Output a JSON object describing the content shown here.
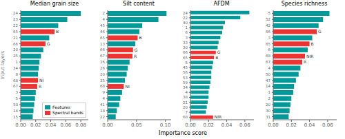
{
  "xlabel": "Importance score",
  "chart_data": [
    {
      "type": "bar",
      "orientation": "horizontal",
      "stacked": true,
      "title": "Median grain size",
      "ylabel": "Input layers",
      "legend": "lower right",
      "categories": [
        "24",
        "23",
        "22",
        "65",
        "21",
        "66",
        "20",
        "25",
        "1",
        "34",
        "8",
        "68",
        "67",
        "3",
        "5",
        "50",
        "14",
        "15"
      ],
      "series": [
        {
          "name": "Features",
          "color": "#009999",
          "values": [
            0.08,
            0.062,
            0.05,
            null,
            0.038,
            null,
            0.03,
            0.027,
            0.025,
            0.024,
            0.023,
            null,
            null,
            0.02,
            0.019,
            0.018,
            0.017,
            0.016
          ]
        },
        {
          "name": "Spectral bands",
          "color": "#EE3333",
          "values": [
            null,
            null,
            null,
            0.045,
            null,
            0.033,
            null,
            null,
            null,
            null,
            null,
            0.023,
            0.022,
            null,
            null,
            null,
            null,
            null
          ]
        }
      ],
      "annotations": [
        null,
        null,
        null,
        "B",
        null,
        "G",
        null,
        null,
        null,
        null,
        null,
        "NI",
        "R",
        null,
        null,
        null,
        null,
        null
      ],
      "xlim": [
        0,
        0.09
      ],
      "xticks": [
        {
          "value": 0,
          "label": "0.00"
        },
        0.02,
        0.04,
        0.06,
        0.08
      ]
    },
    {
      "type": "bar",
      "orientation": "horizontal",
      "stacked": true,
      "title": "Silt content",
      "categories": [
        "2",
        "4",
        "45",
        "46",
        "65",
        "13",
        "66",
        "67",
        "16",
        "26",
        "20",
        "35",
        "68",
        "9",
        "4",
        "41",
        "18",
        "22"
      ],
      "series": [
        {
          "name": "Features",
          "color": "#009999",
          "values": [
            0.102,
            0.088,
            0.06,
            0.055,
            null,
            0.048,
            null,
            null,
            0.038,
            0.035,
            0.033,
            0.03,
            null,
            0.025,
            0.022,
            0.02,
            0.016,
            0.014
          ]
        },
        {
          "name": "Spectral bands",
          "color": "#EE3333",
          "values": [
            null,
            null,
            null,
            null,
            0.052,
            null,
            0.044,
            0.043,
            null,
            null,
            null,
            null,
            0.028,
            null,
            null,
            null,
            null,
            null
          ]
        }
      ],
      "annotations": [
        null,
        null,
        null,
        null,
        "B",
        null,
        "G",
        "R",
        null,
        null,
        null,
        null,
        "NI",
        null,
        null,
        null,
        null,
        null
      ],
      "xlim": [
        0,
        0.11
      ],
      "xticks": [
        {
          "value": 0,
          "label": "0.00"
        },
        0.05,
        {
          "value": 0.1,
          "label": "0.10"
        }
      ]
    },
    {
      "type": "bar",
      "orientation": "horizontal",
      "stacked": true,
      "title": "AFDM",
      "categories": [
        "24",
        "22",
        "40",
        "1",
        "6",
        "3",
        "33",
        "30",
        "66",
        "65",
        "5",
        "45",
        "56",
        "53",
        "59",
        "34",
        "4",
        "38",
        "21",
        "20",
        "7",
        "68"
      ],
      "series": [
        {
          "name": "Features",
          "color": "#009999",
          "values": [
            0.065,
            0.055,
            0.038,
            0.036,
            0.035,
            0.033,
            0.031,
            0.03,
            null,
            null,
            0.025,
            0.024,
            0.023,
            0.023,
            0.022,
            0.021,
            0.02,
            0.02,
            0.019,
            0.018,
            0.017,
            null
          ]
        },
        {
          "name": "Spectral bands",
          "color": "#EE3333",
          "values": [
            null,
            null,
            null,
            null,
            null,
            null,
            null,
            null,
            0.028,
            0.026,
            null,
            null,
            null,
            null,
            null,
            null,
            null,
            null,
            null,
            null,
            null,
            0.025
          ]
        }
      ],
      "annotations": [
        null,
        null,
        null,
        null,
        null,
        null,
        null,
        null,
        "G",
        "B",
        null,
        null,
        null,
        null,
        null,
        null,
        null,
        null,
        null,
        null,
        null,
        "NIR"
      ],
      "xlim": [
        0,
        0.07
      ],
      "xticks": [
        {
          "value": 0,
          "label": "0.00"
        },
        0.02,
        0.04,
        0.06
      ]
    },
    {
      "type": "bar",
      "orientation": "horizontal",
      "stacked": true,
      "title": "Species richness",
      "categories": [
        "5",
        "52",
        "42",
        "66",
        "3",
        "65",
        "6",
        "68",
        "67",
        "4",
        "50",
        "47",
        "14",
        "1",
        "2",
        "20",
        "30",
        "31"
      ],
      "series": [
        {
          "name": "Features",
          "color": "#009999",
          "values": [
            0.062,
            0.055,
            0.05,
            null,
            0.043,
            null,
            0.038,
            null,
            null,
            0.03,
            0.028,
            0.025,
            0.023,
            0.022,
            0.02,
            0.019,
            0.018,
            0.017
          ]
        },
        {
          "name": "Spectral bands",
          "color": "#EE3333",
          "values": [
            null,
            null,
            null,
            0.048,
            null,
            0.04,
            null,
            0.035,
            0.032,
            null,
            null,
            null,
            null,
            null,
            null,
            null,
            null,
            null
          ]
        }
      ],
      "annotations": [
        null,
        null,
        null,
        "G",
        null,
        "B",
        null,
        "NIR",
        "R",
        null,
        null,
        null,
        null,
        null,
        null,
        null,
        null,
        null
      ],
      "xlim": [
        0,
        0.07
      ],
      "xticks": [
        {
          "value": 0,
          "label": "0.00"
        },
        0.02,
        0.04,
        0.06
      ]
    }
  ]
}
